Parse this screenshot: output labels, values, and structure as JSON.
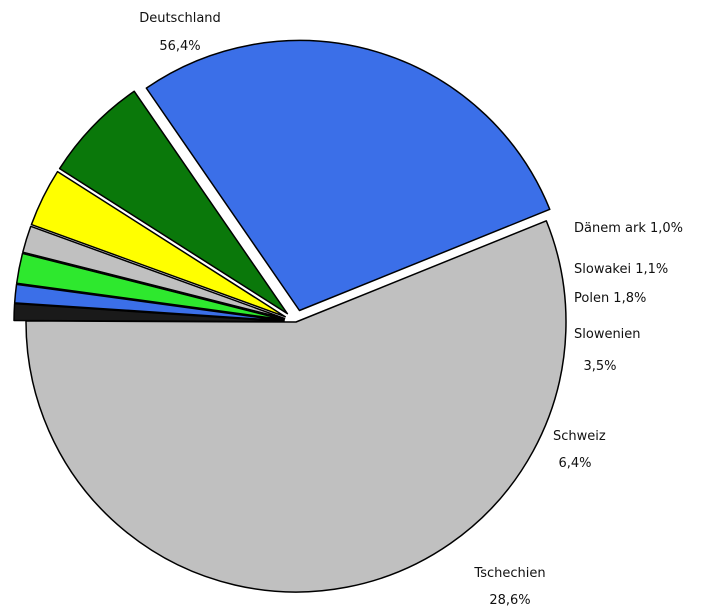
{
  "chart_data": {
    "type": "pie",
    "title": "",
    "slices": [
      {
        "name": "Deutschland",
        "label": "Deutschland",
        "value_label": "56,4%",
        "value": 56.4,
        "color": "#c0c0c0",
        "exploded": false
      },
      {
        "name": "Dänemark",
        "label": "Dänem ark 1,0%",
        "value_label": "",
        "value": 1.0,
        "color": "#1a1a1a",
        "exploded": true
      },
      {
        "name": "Slowakei",
        "label": "Slowakei 1,1%",
        "value_label": "",
        "value": 1.1,
        "color": "#3b6fe8",
        "exploded": true
      },
      {
        "name": "Polen",
        "label": "Polen 1,8%",
        "value_label": "",
        "value": 1.8,
        "color": "#2ee82e",
        "exploded": true
      },
      {
        "name": "Grey slice",
        "label": "",
        "value_label": "",
        "value": 1.6,
        "color": "#c0c0c0",
        "exploded": true
      },
      {
        "name": "Slowenien",
        "label": "Slowenien",
        "value_label": "3,5%",
        "value": 3.5,
        "color": "#ffff00",
        "exploded": true
      },
      {
        "name": "Schweiz",
        "label": "Schweiz",
        "value_label": "6,4%",
        "value": 6.4,
        "color": "#0a780a",
        "exploded": true
      },
      {
        "name": "Tschechien",
        "label": "Tschechien",
        "value_label": "28,6%",
        "value": 28.6,
        "color": "#3b6fe8",
        "exploded": true
      }
    ],
    "start_angle_deg": -22,
    "direction": "clockwise"
  }
}
